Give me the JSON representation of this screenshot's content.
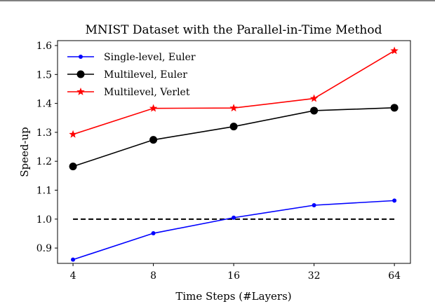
{
  "chart_data": {
    "type": "line",
    "title": "MNIST Dataset with the Parallel-in-Time Method",
    "xlabel": "Time Steps (#Layers)",
    "ylabel": "Speed-up",
    "x": [
      4,
      8,
      16,
      32,
      64
    ],
    "x_scale": "log2",
    "x_tick_labels": [
      "4",
      "8",
      "16",
      "32",
      "64"
    ],
    "y_ticks": [
      0.9,
      1.0,
      1.1,
      1.2,
      1.3,
      1.4,
      1.5,
      1.6
    ],
    "y_tick_labels": [
      "0.9",
      "1.0",
      "1.1",
      "1.2",
      "1.3",
      "1.4",
      "1.5",
      "1.6"
    ],
    "ylim": [
      0.847,
      1.617
    ],
    "xlim": [
      3.5,
      73.5
    ],
    "grid": false,
    "legend_position": "top-left",
    "series": [
      {
        "name": "Single-level, Euler",
        "color": "#0000ff",
        "marker": "dot",
        "values": [
          0.86,
          0.951,
          1.005,
          1.048,
          1.064
        ]
      },
      {
        "name": "Multilevel, Euler",
        "color": "#000000",
        "marker": "circle",
        "values": [
          1.182,
          1.274,
          1.32,
          1.375,
          1.385
        ]
      },
      {
        "name": "Multilevel, Verlet",
        "color": "#ff0000",
        "marker": "star",
        "values": [
          1.293,
          1.383,
          1.384,
          1.417,
          1.582
        ]
      }
    ],
    "reference_line": {
      "y": 1.0,
      "style": "dashed",
      "color": "#000000"
    }
  }
}
